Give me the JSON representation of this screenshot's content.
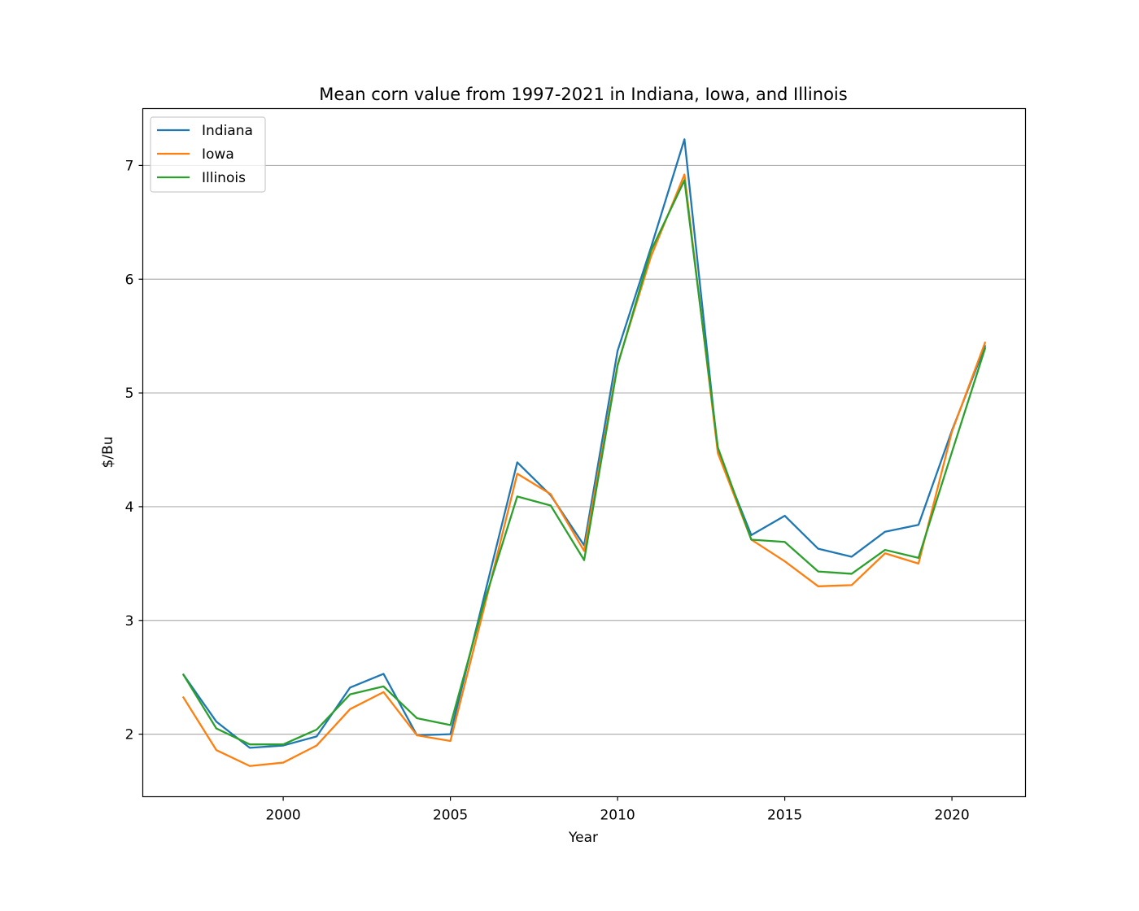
{
  "chart_data": {
    "type": "line",
    "title": "Mean corn value from 1997-2021 in Indiana, Iowa, and Illinois",
    "xlabel": "Year",
    "ylabel": "$/Bu",
    "xlim": [
      1995.8,
      2022.2
    ],
    "ylim": [
      1.45,
      7.5
    ],
    "xticks": [
      2000,
      2005,
      2010,
      2015,
      2020
    ],
    "yticks": [
      2,
      3,
      4,
      5,
      6,
      7
    ],
    "grid": "y-major",
    "legend_position": "upper-left",
    "x": [
      1997,
      1998,
      1999,
      2000,
      2001,
      2002,
      2003,
      2004,
      2005,
      2006,
      2007,
      2008,
      2009,
      2010,
      2011,
      2012,
      2013,
      2014,
      2015,
      2016,
      2017,
      2018,
      2019,
      2020,
      2021
    ],
    "series": [
      {
        "name": "Indiana",
        "color": "#1f77b4",
        "values": [
          2.53,
          2.11,
          1.88,
          1.9,
          1.98,
          2.41,
          2.53,
          1.99,
          2.0,
          3.2,
          4.39,
          4.1,
          3.66,
          5.37,
          6.28,
          7.23,
          4.48,
          3.75,
          3.92,
          3.63,
          3.56,
          3.78,
          3.84,
          4.67,
          5.42
        ]
      },
      {
        "name": "Iowa",
        "color": "#ff7f0e",
        "values": [
          2.33,
          1.86,
          1.72,
          1.75,
          1.9,
          2.22,
          2.37,
          1.99,
          1.94,
          3.1,
          4.29,
          4.11,
          3.61,
          5.25,
          6.2,
          6.92,
          4.47,
          3.71,
          3.52,
          3.3,
          3.31,
          3.59,
          3.5,
          4.66,
          5.45
        ]
      },
      {
        "name": "Illinois",
        "color": "#2ca02c",
        "values": [
          2.53,
          2.05,
          1.91,
          1.91,
          2.04,
          2.35,
          2.42,
          2.14,
          2.08,
          3.15,
          4.09,
          4.01,
          3.53,
          5.24,
          6.25,
          6.87,
          4.52,
          3.71,
          3.69,
          3.43,
          3.41,
          3.62,
          3.55,
          4.48,
          5.4
        ]
      }
    ]
  }
}
